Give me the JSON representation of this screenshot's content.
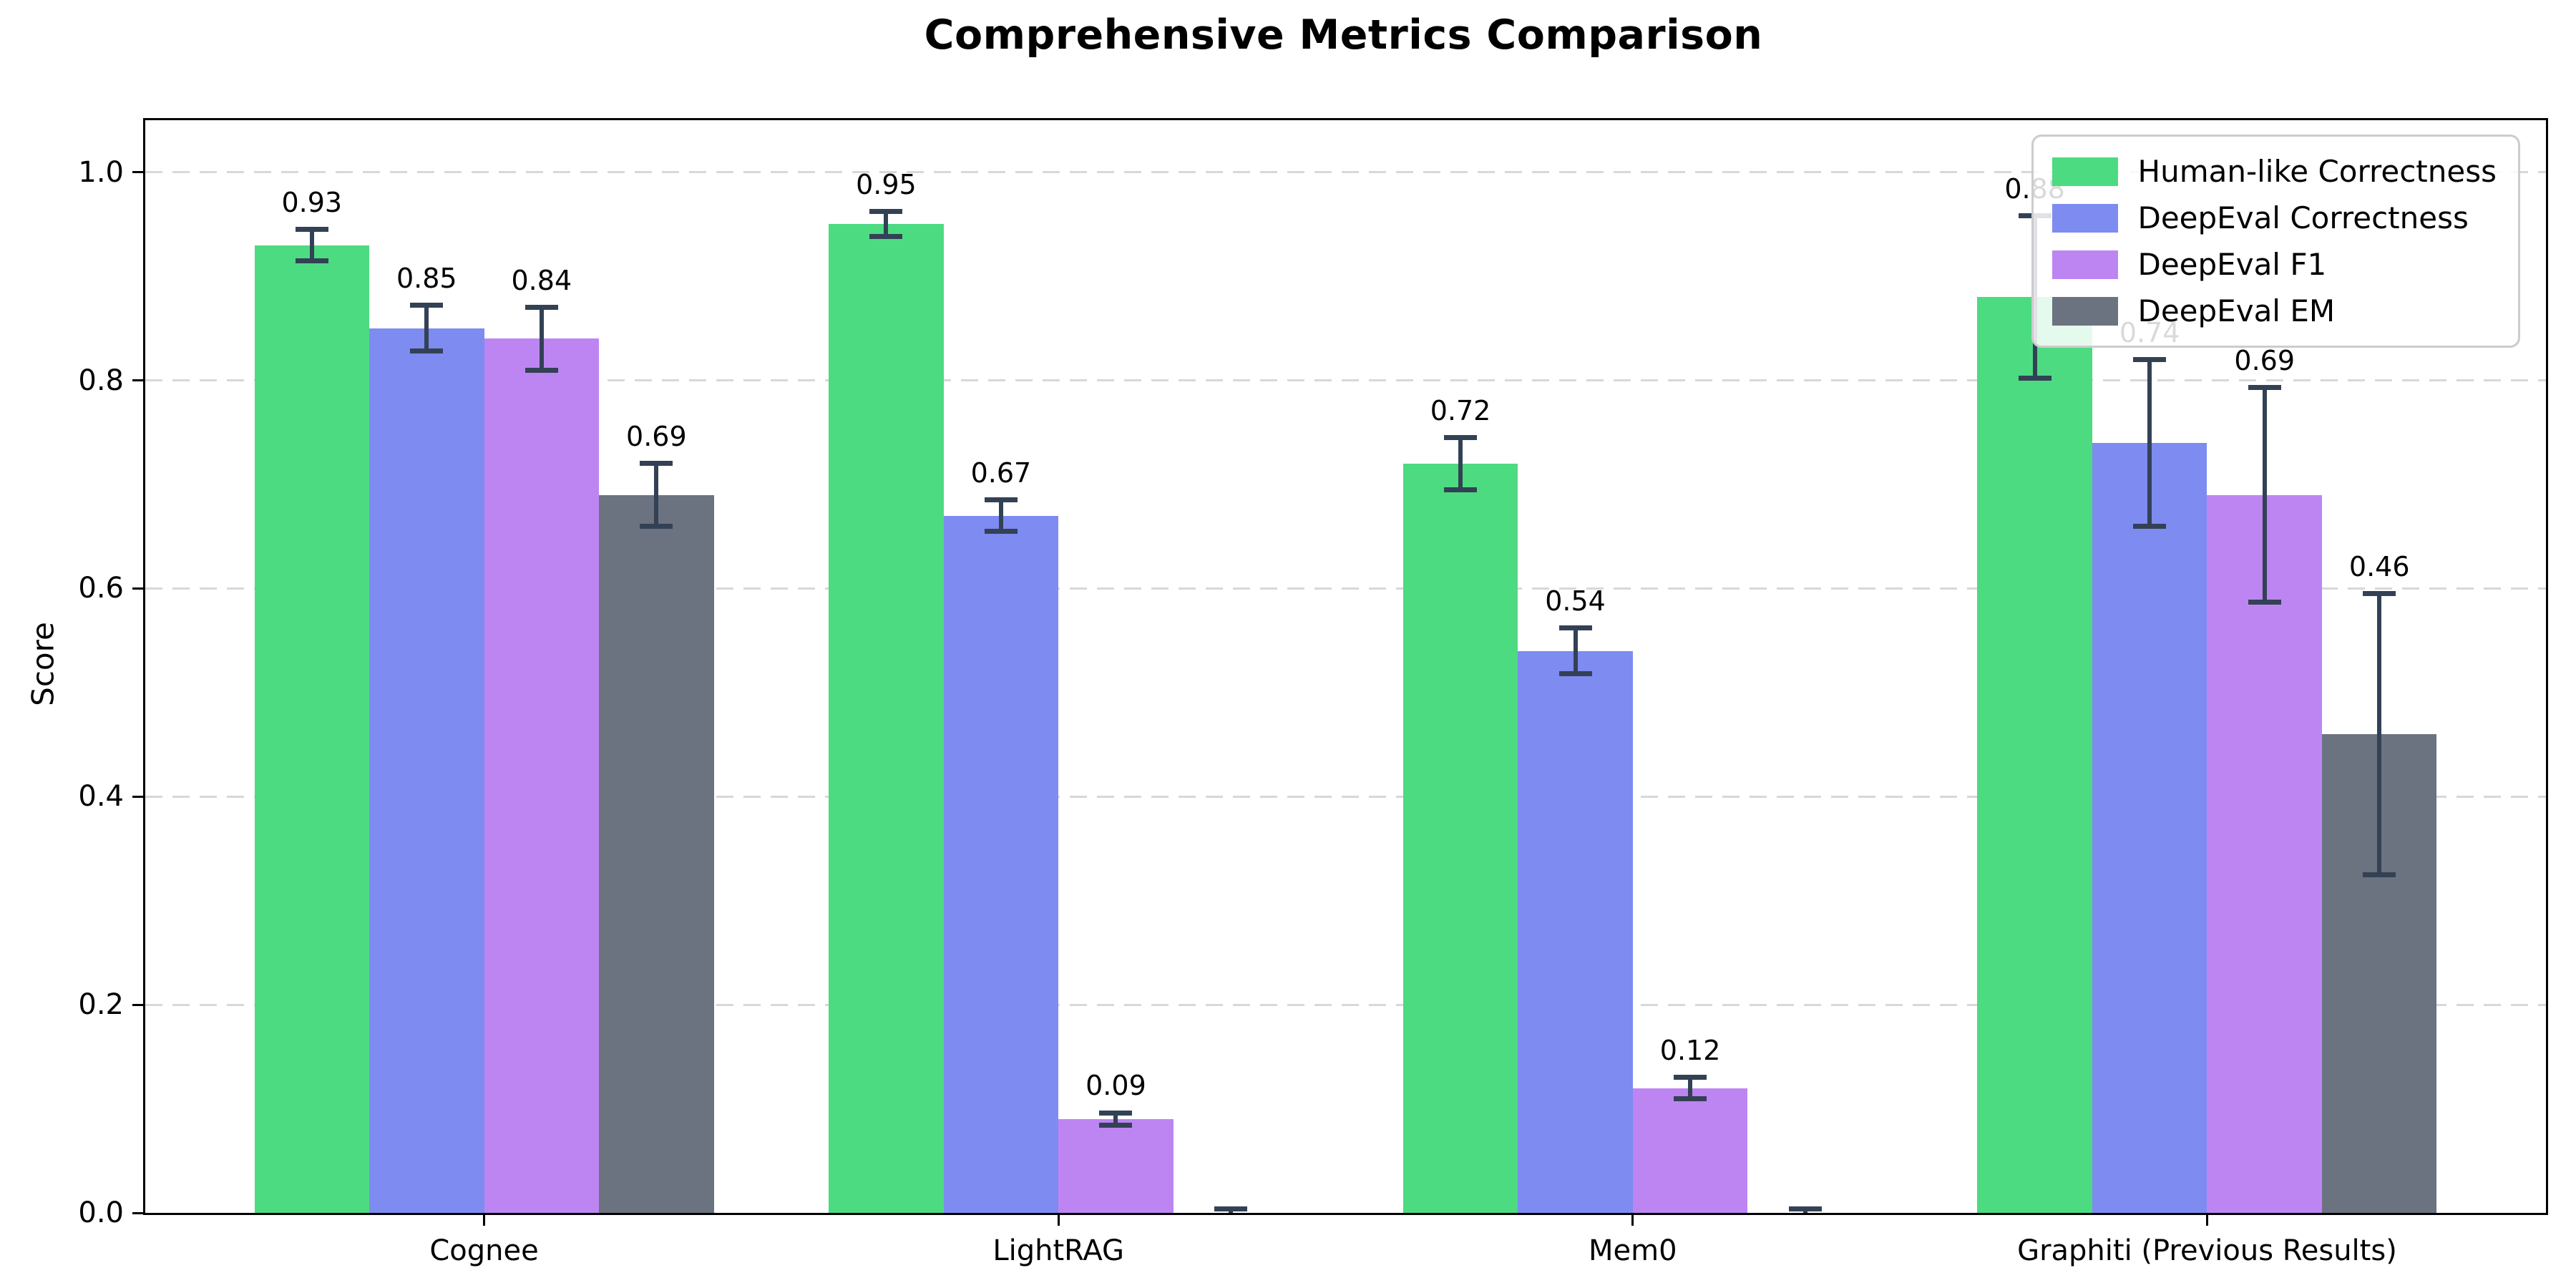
{
  "chart_data": {
    "type": "bar",
    "title": "Comprehensive Metrics Comparison",
    "xlabel": "",
    "ylabel": "Score",
    "categories": [
      "Cognee",
      "LightRAG",
      "Mem0",
      "Graphiti (Previous Results)"
    ],
    "x_positions": [
      0,
      1,
      2,
      3
    ],
    "xlim": [
      -0.59,
      3.59
    ],
    "ylim": [
      0,
      1.05
    ],
    "yticks": [
      0.0,
      0.2,
      0.4,
      0.6,
      0.8,
      1.0
    ],
    "grid": "horizontal-dashed",
    "gridline_color": "#d8d8d8",
    "axis_color": "#000000",
    "error_bar_color": "#334155",
    "bar_width": 0.2,
    "legend_position": "upper-right",
    "series": [
      {
        "name": "Human-like Correctness",
        "color": "#4cdb81",
        "values": [
          0.93,
          0.95,
          0.72,
          0.88
        ],
        "errors": [
          0.015,
          0.012,
          0.025,
          0.078
        ],
        "labels": [
          "0.93",
          "0.95",
          "0.72",
          "0.88"
        ]
      },
      {
        "name": "DeepEval Correctness",
        "color": "#7e8bf0",
        "values": [
          0.85,
          0.67,
          0.54,
          0.74
        ],
        "errors": [
          0.022,
          0.015,
          0.022,
          0.08
        ],
        "labels": [
          "0.85",
          "0.67",
          "0.54",
          "0.74"
        ]
      },
      {
        "name": "DeepEval F1",
        "color": "#bd85f2",
        "values": [
          0.84,
          0.09,
          0.12,
          0.69
        ],
        "errors": [
          0.03,
          0.006,
          0.01,
          0.103
        ],
        "labels": [
          "0.84",
          "0.09",
          "0.12",
          "0.69"
        ]
      },
      {
        "name": "DeepEval EM",
        "color": "#6b7280",
        "values": [
          0.69,
          0.0,
          0.0,
          0.46
        ],
        "errors": [
          0.03,
          0.004,
          0.004,
          0.135
        ],
        "labels": [
          "0.69",
          "",
          "",
          "0.46"
        ]
      }
    ]
  }
}
